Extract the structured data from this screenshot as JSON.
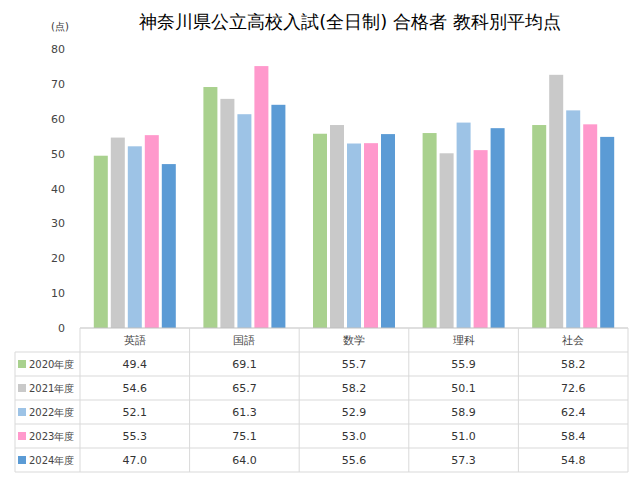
{
  "chart_data": {
    "type": "bar",
    "title": "神奈川県公立高校入試(全日制) 合格者 教科別平均点",
    "y_label": "(点)",
    "categories": [
      "英語",
      "国語",
      "数学",
      "理科",
      "社会"
    ],
    "series": [
      {
        "name": "2020年度",
        "color": "#a9d18e",
        "values": [
          49.4,
          69.1,
          55.7,
          55.9,
          58.2
        ],
        "value_labels": [
          "49.4",
          "69.1",
          "55.7",
          "55.9",
          "58.2"
        ]
      },
      {
        "name": "2021年度",
        "color": "#c9c9c9",
        "values": [
          54.6,
          65.7,
          58.2,
          50.1,
          72.6
        ],
        "value_labels": [
          "54.6",
          "65.7",
          "58.2",
          "50.1",
          "72.6"
        ]
      },
      {
        "name": "2022年度",
        "color": "#9dc3e6",
        "values": [
          52.1,
          61.3,
          52.9,
          58.9,
          62.4
        ],
        "value_labels": [
          "52.1",
          "61.3",
          "52.9",
          "58.9",
          "62.4"
        ]
      },
      {
        "name": "2023年度",
        "color": "#ff99cc",
        "values": [
          55.3,
          75.1,
          53.0,
          51.0,
          58.4
        ],
        "value_labels": [
          "55.3",
          "75.1",
          "53.0",
          "51.0",
          "58.4"
        ]
      },
      {
        "name": "2024年度",
        "color": "#5b9bd5",
        "values": [
          47.0,
          64.0,
          55.6,
          57.3,
          54.8
        ],
        "value_labels": [
          "47.0",
          "64.0",
          "55.6",
          "57.3",
          "54.8"
        ]
      }
    ],
    "ylim": [
      0,
      80
    ],
    "yticks": [
      0,
      10,
      20,
      30,
      40,
      50,
      60,
      70,
      80
    ],
    "grid": false
  }
}
